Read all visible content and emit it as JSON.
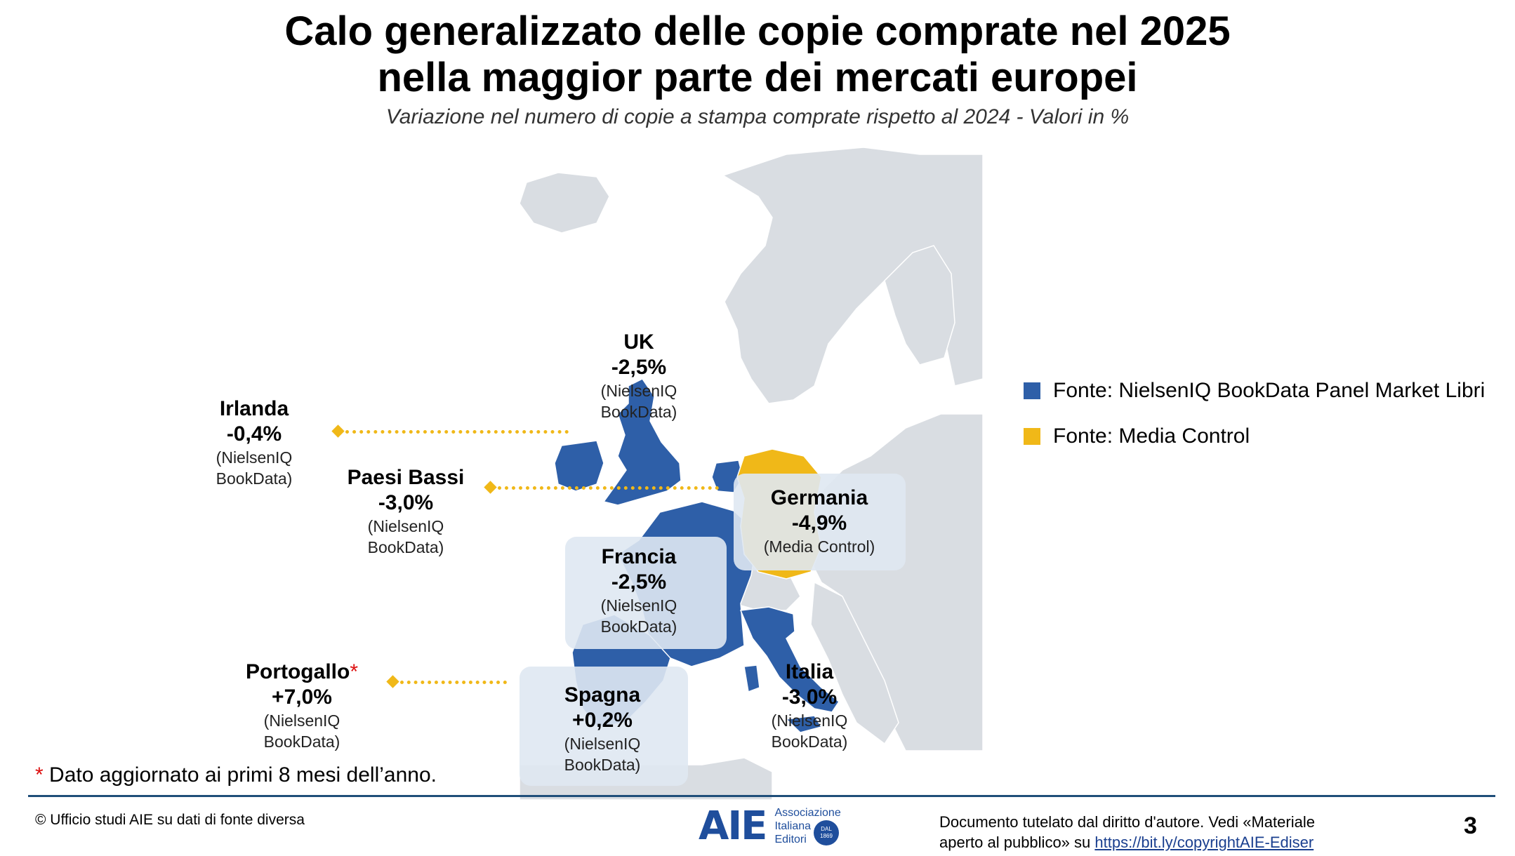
{
  "header": {
    "title_line1": "Calo generalizzato delle copie comprate nel 2025",
    "title_line2": "nella maggior parte dei mercati europei",
    "subtitle": "Variazione nel numero di copie a stampa comprate rispetto al 2024 - Valori in %"
  },
  "countries": {
    "uk": {
      "name": "UK",
      "value": "-2,5%",
      "source_line1": "(NielsenIQ",
      "source_line2": "BookData)",
      "source": "NielsenIQ"
    },
    "irlanda": {
      "name": "Irlanda",
      "value": "-0,4%",
      "source_line1": "(NielsenIQ",
      "source_line2": "BookData)",
      "source": "NielsenIQ"
    },
    "paesi_bassi": {
      "name": "Paesi Bassi",
      "value": "-3,0%",
      "source_line1": "(NielsenIQ",
      "source_line2": "BookData)",
      "source": "NielsenIQ"
    },
    "germania": {
      "name": "Germania",
      "value": "-4,9%",
      "source_line1": "(Media Control)",
      "source": "Media Control"
    },
    "francia": {
      "name": "Francia",
      "value": "-2,5%",
      "source_line1": "(NielsenIQ",
      "source_line2": "BookData)",
      "source": "NielsenIQ"
    },
    "portogallo": {
      "name": "Portogallo",
      "value": "+7,0%",
      "source_line1": "(NielsenIQ",
      "source_line2": "BookData)",
      "marker": "*",
      "source": "NielsenIQ"
    },
    "spagna": {
      "name": "Spagna",
      "value": "+0,2%",
      "source_line1": "(NielsenIQ",
      "source_line2": "BookData)",
      "source": "NielsenIQ"
    },
    "italia": {
      "name": "Italia",
      "value": "-3,0%",
      "source_line1": "(NielsenIQ",
      "source_line2": "BookData)",
      "source": "NielsenIQ"
    }
  },
  "legend": {
    "nielsen": {
      "label": "Fonte: NielsenIQ BookData Panel Market Libri",
      "color": "#2e5fa8"
    },
    "media_control": {
      "label": "Fonte: Media Control",
      "color": "#f0b818"
    }
  },
  "colors": {
    "land": "#d9dde2",
    "border": "#ffffff",
    "sea": "#ffffff",
    "connector": "#f0b818",
    "label_box": "#dfe8f2"
  },
  "footnote": {
    "marker": "*",
    "text": "Dato aggiornato ai primi 8 mesi dell’anno."
  },
  "footer": {
    "source": "© Ufficio studi AIE su dati di fonte diversa",
    "logo_mark": "AIE",
    "logo_line1": "Associazione",
    "logo_line2": "Italiana",
    "logo_line3": "Editori",
    "logo_badge_line1": "DAL",
    "logo_badge_line2": "1869",
    "copyright_line1": "Documento tutelato dal diritto d'autore. Vedi «Materiale",
    "copyright_line2": "aperto al pubblico» su",
    "copyright_link": "https://bit.ly/copyrightAIE-Ediser",
    "page_number": "3"
  }
}
